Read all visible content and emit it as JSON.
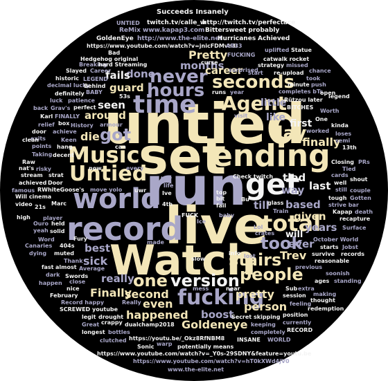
{
  "palette": {
    "cream": "#f3e6b8",
    "white": "#f4f4f4",
    "lavender": "#a9a7c8",
    "slate": "#7a7f97",
    "grey": "#8c8c9a",
    "dim": "#5c6072"
  },
  "words": [
    {
      "text": "untied",
      "color": "cream"
    },
    {
      "text": "set",
      "color": "cream"
    },
    {
      "text": "run",
      "color": "lavender"
    },
    {
      "text": "live",
      "color": "cream"
    },
    {
      "text": "Watch",
      "color": "cream"
    },
    {
      "text": "ending",
      "color": "cream"
    },
    {
      "text": "record",
      "color": "lavender"
    },
    {
      "text": "world",
      "color": "lavender"
    },
    {
      "text": "get",
      "color": "white"
    },
    {
      "text": "Music",
      "color": "cream"
    },
    {
      "text": "Untied",
      "color": "cream"
    },
    {
      "text": "time",
      "color": "lavender"
    },
    {
      "text": "total",
      "color": "cream"
    },
    {
      "text": "Agent",
      "color": "cream"
    },
    {
      "text": "hours",
      "color": "lavender"
    },
    {
      "text": "never",
      "color": "lavender"
    },
    {
      "text": "seconds",
      "color": "cream"
    },
    {
      "text": "day",
      "color": "cream"
    },
    {
      "text": "fucking",
      "color": "lavender"
    },
    {
      "text": "version",
      "color": "white"
    },
    {
      "text": "one",
      "color": "cream"
    },
    {
      "text": "stairs",
      "color": "cream"
    },
    {
      "text": "people",
      "color": "cream"
    },
    {
      "text": "took",
      "color": "lavender"
    },
    {
      "text": "got",
      "color": "lavender"
    },
    {
      "text": "die",
      "color": "cream"
    },
    {
      "text": "Goldeneye",
      "color": "cream"
    },
    {
      "text": "happened",
      "color": "cream"
    },
    {
      "text": "Finally",
      "color": "cream"
    },
    {
      "text": "second",
      "color": "cream"
    },
    {
      "text": "even",
      "color": "cream"
    },
    {
      "text": "boost",
      "color": "lavender"
    },
    {
      "text": "person",
      "color": "cream"
    },
    {
      "text": "pretty",
      "color": "cream"
    },
    {
      "text": "Pretty",
      "color": "cream"
    },
    {
      "text": "done",
      "color": "lavender"
    },
    {
      "text": "months",
      "color": "lavender"
    },
    {
      "text": "career",
      "color": "cream"
    },
    {
      "text": "fails",
      "color": "white"
    },
    {
      "text": "guard",
      "color": "cream"
    },
    {
      "text": "around",
      "color": "cream"
    },
    {
      "text": "seen",
      "color": "white"
    },
    {
      "text": "best",
      "color": "lavender"
    },
    {
      "text": "sick",
      "color": "lavender"
    },
    {
      "text": "really",
      "color": "lavender"
    },
    {
      "text": "Trev",
      "color": "cream"
    },
    {
      "text": "years",
      "color": "lavender"
    },
    {
      "text": "ever",
      "color": "lavender"
    },
    {
      "text": "based",
      "color": "lavender"
    },
    {
      "text": "given",
      "color": "cream"
    },
    {
      "text": "last",
      "color": "white"
    },
    {
      "text": "way",
      "color": "lavender"
    },
    {
      "text": "tied",
      "color": "white"
    },
    {
      "text": "till",
      "color": "lavender"
    },
    {
      "text": "will",
      "color": "white"
    },
    {
      "text": "like",
      "color": "lavender"
    },
    {
      "text": "first",
      "color": "white"
    },
    {
      "text": "finally",
      "color": "cream"
    },
    {
      "text": "little",
      "color": "lavender"
    },
    {
      "text": "Succeeds Insanely",
      "color": "white"
    },
    {
      "text": "twitch.tv/calle_w",
      "color": "white"
    },
    {
      "text": "http://twitch.tv/perfectace",
      "color": "white"
    },
    {
      "text": "ReMix www.kapap3.com",
      "color": "lavender"
    },
    {
      "text": "Bittersweet probably",
      "color": "white"
    },
    {
      "text": "GoldenEye",
      "color": "white"
    },
    {
      "text": "http://www.the-elite.net",
      "color": "lavender"
    },
    {
      "text": "Hurricanes",
      "color": "white"
    },
    {
      "text": "Achieved",
      "color": "white"
    },
    {
      "text": "https://www.youtube.com/watch?v=jnicFDMvh3I",
      "color": "white"
    },
    {
      "text": "Bad",
      "color": "white"
    },
    {
      "text": "Hedgehog original",
      "color": "white"
    },
    {
      "text": "FUCKING",
      "color": "lavender"
    },
    {
      "text": "catwalk rocket",
      "color": "white"
    },
    {
      "text": "Statue",
      "color": "white"
    },
    {
      "text": "uplifted",
      "color": "lavender"
    },
    {
      "text": "AR33",
      "color": "lavender"
    },
    {
      "text": "Breaking",
      "color": "lavender"
    },
    {
      "text": "hard Streaming",
      "color": "white"
    },
    {
      "text": "curse",
      "color": "white"
    },
    {
      "text": "strategy",
      "color": "white"
    },
    {
      "text": "missed",
      "color": "lavender"
    },
    {
      "text": "historic",
      "color": "white"
    },
    {
      "text": "Slayed",
      "color": "white"
    },
    {
      "text": "Career",
      "color": "lavender"
    },
    {
      "text": "surprised",
      "color": "lavender"
    },
    {
      "text": "start",
      "color": "lavender"
    },
    {
      "text": "re-upload",
      "color": "white"
    },
    {
      "text": "chance",
      "color": "lavender"
    },
    {
      "text": "UNTIED",
      "color": "lavender"
    },
    {
      "text": "LEGEND",
      "color": "lavender"
    },
    {
      "text": "BABY",
      "color": "lavender"
    },
    {
      "text": "decimal lucky",
      "color": "lavender"
    },
    {
      "text": "minute",
      "color": "white"
    },
    {
      "text": "push",
      "color": "lavender"
    },
    {
      "text": "took",
      "color": "lavender"
    },
    {
      "text": "definitely",
      "color": "white"
    },
    {
      "text": "Behind",
      "color": "white"
    },
    {
      "text": "53s",
      "color": "white"
    },
    {
      "text": "runs",
      "color": "white"
    },
    {
      "text": "year",
      "color": "lavender"
    },
    {
      "text": "completes bTs",
      "color": "lavender"
    },
    {
      "text": "legend",
      "color": "white"
    },
    {
      "text": "luck",
      "color": "lavender"
    },
    {
      "text": "patience",
      "color": "lavender"
    },
    {
      "text": "Rützou later",
      "color": "white"
    },
    {
      "text": "open",
      "color": "white"
    },
    {
      "text": "back",
      "color": "lavender"
    },
    {
      "text": "Grav's",
      "color": "lavender"
    },
    {
      "text": "perfect",
      "color": "white"
    },
    {
      "text": "BITCHES",
      "color": "white"
    },
    {
      "text": "Worth",
      "color": "lavender"
    },
    {
      "text": "Karl",
      "color": "white"
    },
    {
      "text": "FINALLY",
      "color": "lavender"
    },
    {
      "text": "One",
      "color": "white"
    },
    {
      "text": "relief",
      "color": "lavender"
    },
    {
      "text": "box",
      "color": "white"
    },
    {
      "text": "History",
      "color": "lavender"
    },
    {
      "text": "armour",
      "color": "lavender"
    },
    {
      "text": "visit",
      "color": "lavender"
    },
    {
      "text": "kinda",
      "color": "white"
    },
    {
      "text": "door",
      "color": "white"
    },
    {
      "text": "achieve",
      "color": "lavender"
    },
    {
      "text": "worked",
      "color": "lavender"
    },
    {
      "text": "loses",
      "color": "lavender"
    },
    {
      "text": "exits",
      "color": "lavender"
    },
    {
      "text": "Keen",
      "color": "lavender"
    },
    {
      "text": "semi",
      "color": "lavender"
    },
    {
      "text": "clean",
      "color": "white"
    },
    {
      "text": "points",
      "color": "lavender"
    },
    {
      "text": "hang",
      "color": "white"
    },
    {
      "text": "can",
      "color": "white"
    },
    {
      "text": "13th",
      "color": "white"
    },
    {
      "text": "Taking",
      "color": "lavender"
    },
    {
      "text": "decent",
      "color": "white"
    },
    {
      "text": "Closing",
      "color": "white"
    },
    {
      "text": "PRs",
      "color": "lavender"
    },
    {
      "text": "Raw",
      "color": "white"
    },
    {
      "text": "nat's",
      "color": "white"
    },
    {
      "text": "risky",
      "color": "lavender"
    },
    {
      "text": "now",
      "color": "white"
    },
    {
      "text": "every",
      "color": "lavender"
    },
    {
      "text": "Tied",
      "color": "lavender"
    },
    {
      "text": "cards",
      "color": "lavender"
    },
    {
      "text": "stream",
      "color": "white"
    },
    {
      "text": "strat",
      "color": "white"
    },
    {
      "text": "Check twitch",
      "color": "white"
    },
    {
      "text": "shout",
      "color": "white"
    },
    {
      "text": "achieved",
      "color": "white"
    },
    {
      "text": "Door",
      "color": "white"
    },
    {
      "text": "tier",
      "color": "lavender"
    },
    {
      "text": "famous",
      "color": "lavender"
    },
    {
      "text": "RWhiteGoose's",
      "color": "white"
    },
    {
      "text": "move yolo",
      "color": "lavender"
    },
    {
      "text": "uwr",
      "color": "white"
    },
    {
      "text": "well",
      "color": "white"
    },
    {
      "text": "couple",
      "color": "lavender"
    },
    {
      "text": "Will cinema",
      "color": "white"
    },
    {
      "text": "Ive",
      "color": "white"
    },
    {
      "text": "still",
      "color": "lavender"
    },
    {
      "text": "video",
      "color": "white"
    },
    {
      "text": "Marc",
      "color": "white"
    },
    {
      "text": "4th",
      "color": "white"
    },
    {
      "text": "glass",
      "color": "white"
    },
    {
      "text": "Gotten",
      "color": "lavender"
    },
    {
      "text": "21s",
      "color": "white"
    },
    {
      "text": "tough",
      "color": "white"
    },
    {
      "text": "strive bar",
      "color": "lavender"
    },
    {
      "text": "high",
      "color": "white"
    },
    {
      "text": "player",
      "color": "lavender"
    },
    {
      "text": "FUCK",
      "color": "white"
    },
    {
      "text": "Train",
      "color": "lavender"
    },
    {
      "text": "Kapap",
      "color": "white"
    },
    {
      "text": "death",
      "color": "lavender"
    },
    {
      "text": "recapture",
      "color": "white"
    },
    {
      "text": "Ouro",
      "color": "lavender"
    },
    {
      "text": "held",
      "color": "white"
    },
    {
      "text": "baby",
      "color": "lavender"
    },
    {
      "text": "Surface",
      "color": "lavender"
    },
    {
      "text": "yeah",
      "color": "lavender"
    },
    {
      "text": "solid",
      "color": "white"
    },
    {
      "text": "crates",
      "color": "lavender"
    },
    {
      "text": "October World",
      "color": "lavender"
    },
    {
      "text": "Canaries",
      "color": "lavender"
    },
    {
      "text": "Word",
      "color": "lavender"
    },
    {
      "text": "404s",
      "color": "white"
    },
    {
      "text": "Fury",
      "color": "white"
    },
    {
      "text": "made",
      "color": "lavender"
    },
    {
      "text": "starts",
      "color": "white"
    },
    {
      "text": "Jobst",
      "color": "lavender"
    },
    {
      "text": "dying",
      "color": "lavender"
    },
    {
      "text": "muted",
      "color": "white"
    },
    {
      "text": "info",
      "color": "white"
    },
    {
      "text": "records",
      "color": "white"
    },
    {
      "text": "fast",
      "color": "white"
    },
    {
      "text": "almost",
      "color": "white"
    },
    {
      "text": "Thank",
      "color": "lavender"
    },
    {
      "text": "slow",
      "color": "white"
    },
    {
      "text": "lost",
      "color": "lavender"
    },
    {
      "text": "reasonable",
      "color": "white"
    },
    {
      "text": "dark",
      "color": "lavender"
    },
    {
      "text": "Swords",
      "color": "white"
    },
    {
      "text": "Average",
      "color": "lavender"
    },
    {
      "text": "previous",
      "color": "lavender"
    },
    {
      "text": "happen",
      "color": "lavender"
    },
    {
      "text": "close",
      "color": "lavender"
    },
    {
      "text": "soonish",
      "color": "lavender"
    },
    {
      "text": "ages",
      "color": "white"
    },
    {
      "text": "standing",
      "color": "lavender"
    },
    {
      "text": "nice",
      "color": "white"
    },
    {
      "text": "Sub",
      "color": "white"
    },
    {
      "text": "extra",
      "color": "lavender"
    },
    {
      "text": "February",
      "color": "white"
    },
    {
      "text": "mess",
      "color": "lavender"
    },
    {
      "text": "near",
      "color": "white"
    },
    {
      "text": "making",
      "color": "lavender"
    },
    {
      "text": "Record happy",
      "color": "lavender"
    },
    {
      "text": "session",
      "color": "white"
    },
    {
      "text": "thought",
      "color": "white"
    },
    {
      "text": "SCREWED youtube",
      "color": "white"
    },
    {
      "text": "Really",
      "color": "lavender"
    },
    {
      "text": "feeling",
      "color": "lavender"
    },
    {
      "text": "redemption",
      "color": "white"
    },
    {
      "text": "legit",
      "color": "white"
    },
    {
      "text": "drought",
      "color": "white"
    },
    {
      "text": "skipping",
      "color": "white"
    },
    {
      "text": "position",
      "color": "white"
    },
    {
      "text": "crappy",
      "color": "white"
    },
    {
      "text": "Secret",
      "color": "white"
    },
    {
      "text": "currently",
      "color": "lavender"
    },
    {
      "text": "Great",
      "color": "lavender"
    },
    {
      "text": "dualchamp2018",
      "color": "white"
    },
    {
      "text": "keeping",
      "color": "lavender"
    },
    {
      "text": "RECORD",
      "color": "white"
    },
    {
      "text": "longest",
      "color": "white"
    },
    {
      "text": "bottles",
      "color": "lavender"
    },
    {
      "text": "completely",
      "color": "lavender"
    },
    {
      "text": "clutched",
      "color": "lavender"
    },
    {
      "text": "https://youtu.be/_Okz8RfNBM8",
      "color": "white"
    },
    {
      "text": "INSANE",
      "color": "white"
    },
    {
      "text": "WORLD",
      "color": "lavender"
    },
    {
      "text": "Sonic",
      "color": "white"
    },
    {
      "text": "potentially means",
      "color": "white"
    },
    {
      "text": "warp",
      "color": "lavender"
    },
    {
      "text": "https://www.youtube.com/watch?v=_Y0s-29SDNY&feature=youtu.be",
      "color": "white"
    },
    {
      "text": "https://www.youtube.com/watch?v=hT0kXWd4jV0",
      "color": "lavender"
    },
    {
      "text": "www.the-elite.net",
      "color": "lavender"
    },
    {
      "text": "top",
      "color": "white"
    },
    {
      "text": "bit",
      "color": "white"
    },
    {
      "text": "fail",
      "color": "white"
    },
    {
      "text": "life",
      "color": "lavender"
    },
    {
      "text": "Ice",
      "color": "lavender"
    },
    {
      "text": "Lol",
      "color": "lavender"
    },
    {
      "text": "Bu",
      "color": "white"
    },
    {
      "text": "survive",
      "color": "white"
    }
  ]
}
